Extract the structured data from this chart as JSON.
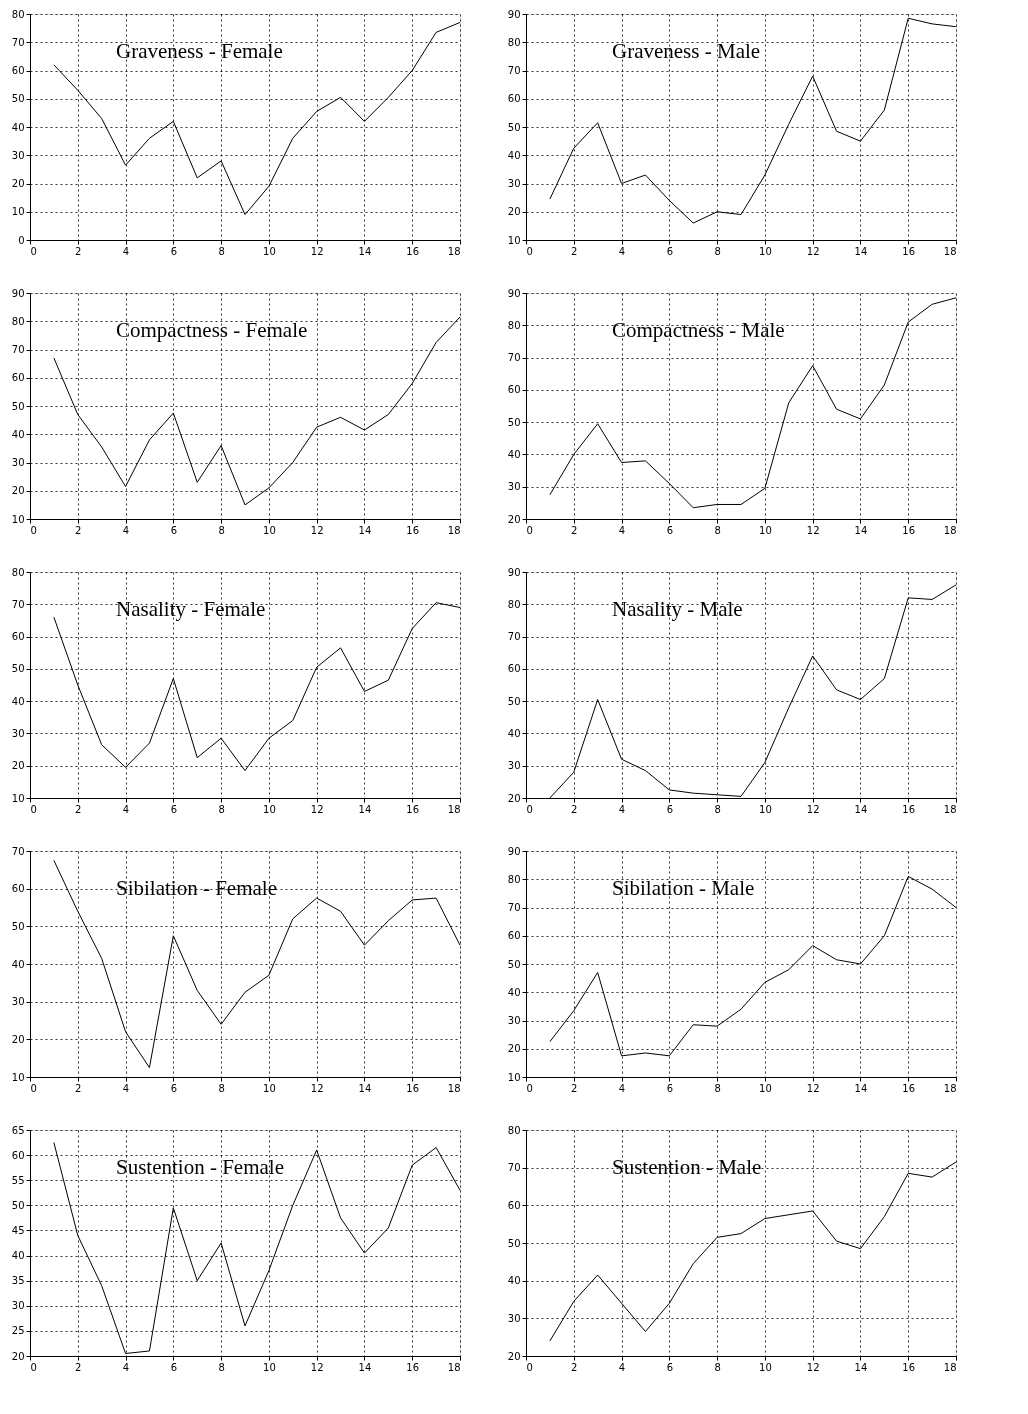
{
  "chart_data": [
    {
      "type": "line",
      "title": "Graveness - Female",
      "x": [
        1,
        2,
        3,
        4,
        5,
        6,
        7,
        8,
        9,
        10,
        11,
        12,
        13,
        14,
        15,
        16,
        17,
        18
      ],
      "xlim": [
        0,
        18
      ],
      "xticks": [
        0,
        2,
        4,
        6,
        8,
        10,
        12,
        14,
        16,
        18
      ],
      "ylim": [
        0,
        80
      ],
      "yticks": [
        0,
        10,
        20,
        30,
        40,
        50,
        60,
        70,
        80
      ],
      "grid": true,
      "marker": "none",
      "line_style": "solid",
      "series": [
        {
          "color": "#000000",
          "values": [
            62,
            53,
            43,
            26.5,
            36,
            42,
            22,
            28,
            9,
            19,
            36,
            45.5,
            50.5,
            42,
            50.5,
            60,
            73.5,
            77
          ]
        }
      ]
    },
    {
      "type": "line",
      "title": "Graveness - Male",
      "x": [
        1,
        2,
        3,
        4,
        5,
        6,
        7,
        8,
        9,
        10,
        11,
        12,
        13,
        14,
        15,
        16,
        17,
        18
      ],
      "xlim": [
        0,
        18
      ],
      "xticks": [
        0,
        2,
        4,
        6,
        8,
        10,
        12,
        14,
        16,
        18
      ],
      "ylim": [
        10,
        90
      ],
      "yticks": [
        10,
        20,
        30,
        40,
        50,
        60,
        70,
        80,
        90
      ],
      "grid": true,
      "marker": "none",
      "line_style": "solid",
      "series": [
        {
          "color": "#000000",
          "values": [
            24.5,
            42.5,
            51.5,
            30,
            33,
            24,
            16,
            20,
            19,
            33,
            51,
            68,
            48.5,
            45,
            56,
            88.5,
            86.5,
            85.5
          ]
        }
      ]
    },
    {
      "type": "line",
      "title": "Compactness - Female",
      "x": [
        1,
        2,
        3,
        4,
        5,
        6,
        7,
        8,
        9,
        10,
        11,
        12,
        13,
        14,
        15,
        16,
        17,
        18
      ],
      "xlim": [
        0,
        18
      ],
      "xticks": [
        0,
        2,
        4,
        6,
        8,
        10,
        12,
        14,
        16,
        18
      ],
      "ylim": [
        10,
        90
      ],
      "yticks": [
        10,
        20,
        30,
        40,
        50,
        60,
        70,
        80,
        90
      ],
      "grid": true,
      "marker": "none",
      "line_style": "solid",
      "series": [
        {
          "color": "#000000",
          "values": [
            67,
            47,
            35.5,
            21.5,
            38,
            47.5,
            23,
            36,
            15,
            21,
            30,
            42.5,
            46,
            41.5,
            47,
            58,
            72.5,
            81.5
          ]
        }
      ]
    },
    {
      "type": "line",
      "title": "Compactness - Male",
      "x": [
        1,
        2,
        3,
        4,
        5,
        6,
        7,
        8,
        9,
        10,
        11,
        12,
        13,
        14,
        15,
        16,
        17,
        18
      ],
      "xlim": [
        0,
        18
      ],
      "xticks": [
        0,
        2,
        4,
        6,
        8,
        10,
        12,
        14,
        16,
        18
      ],
      "ylim": [
        20,
        90
      ],
      "yticks": [
        20,
        30,
        40,
        50,
        60,
        70,
        80,
        90
      ],
      "grid": true,
      "marker": "none",
      "line_style": "solid",
      "series": [
        {
          "color": "#000000",
          "values": [
            27.5,
            40,
            49.5,
            37.5,
            38,
            31,
            23.5,
            24.5,
            24.5,
            29.5,
            56,
            67.5,
            54,
            51,
            61.5,
            81,
            86.5,
            88.5
          ]
        }
      ]
    },
    {
      "type": "line",
      "title": "Nasality - Female",
      "x": [
        1,
        2,
        3,
        4,
        5,
        6,
        7,
        8,
        9,
        10,
        11,
        12,
        13,
        14,
        15,
        16,
        17,
        18
      ],
      "xlim": [
        0,
        18
      ],
      "xticks": [
        0,
        2,
        4,
        6,
        8,
        10,
        12,
        14,
        16,
        18
      ],
      "ylim": [
        10,
        80
      ],
      "yticks": [
        10,
        20,
        30,
        40,
        50,
        60,
        70,
        80
      ],
      "grid": true,
      "marker": "none",
      "line_style": "solid",
      "series": [
        {
          "color": "#000000",
          "values": [
            66,
            45,
            26.5,
            19.5,
            27,
            47,
            22.5,
            28.5,
            18.5,
            28.5,
            34,
            50.5,
            56.5,
            43,
            46.5,
            62.5,
            70.5,
            69
          ]
        }
      ]
    },
    {
      "type": "line",
      "title": "Nasality - Male",
      "x": [
        1,
        2,
        3,
        4,
        5,
        6,
        7,
        8,
        9,
        10,
        11,
        12,
        13,
        14,
        15,
        16,
        17,
        18
      ],
      "xlim": [
        0,
        18
      ],
      "xticks": [
        0,
        2,
        4,
        6,
        8,
        10,
        12,
        14,
        16,
        18
      ],
      "ylim": [
        20,
        90
      ],
      "yticks": [
        20,
        30,
        40,
        50,
        60,
        70,
        80,
        90
      ],
      "grid": true,
      "marker": "none",
      "line_style": "solid",
      "series": [
        {
          "color": "#000000",
          "values": [
            20,
            28,
            50.5,
            32,
            28.5,
            22.5,
            21.5,
            21,
            20.5,
            31,
            48,
            64,
            53.5,
            50.5,
            57,
            82,
            81.5,
            86
          ]
        }
      ]
    },
    {
      "type": "line",
      "title": "Sibilation - Female",
      "x": [
        1,
        2,
        3,
        4,
        5,
        6,
        7,
        8,
        9,
        10,
        11,
        12,
        13,
        14,
        15,
        16,
        17,
        18
      ],
      "xlim": [
        0,
        18
      ],
      "xticks": [
        0,
        2,
        4,
        6,
        8,
        10,
        12,
        14,
        16,
        18
      ],
      "ylim": [
        10,
        70
      ],
      "yticks": [
        10,
        20,
        30,
        40,
        50,
        60,
        70
      ],
      "grid": true,
      "marker": "none",
      "line_style": "solid",
      "series": [
        {
          "color": "#000000",
          "values": [
            67.5,
            54,
            41.5,
            22,
            12.5,
            47.5,
            33,
            24,
            32.5,
            37,
            52,
            57.5,
            54,
            45,
            51.5,
            57,
            57.5,
            45
          ]
        }
      ]
    },
    {
      "type": "line",
      "title": "Sibilation - Male",
      "x": [
        1,
        2,
        3,
        4,
        5,
        6,
        7,
        8,
        9,
        10,
        11,
        12,
        13,
        14,
        15,
        16,
        17,
        18
      ],
      "xlim": [
        0,
        18
      ],
      "xticks": [
        0,
        2,
        4,
        6,
        8,
        10,
        12,
        14,
        16,
        18
      ],
      "ylim": [
        10,
        90
      ],
      "yticks": [
        10,
        20,
        30,
        40,
        50,
        60,
        70,
        80,
        90
      ],
      "grid": true,
      "marker": "none",
      "line_style": "solid",
      "series": [
        {
          "color": "#000000",
          "values": [
            22.5,
            33.5,
            47,
            17.5,
            18.5,
            17.5,
            28.5,
            28,
            34,
            43.5,
            48,
            56.5,
            51.5,
            50,
            60,
            81,
            76.5,
            70
          ]
        }
      ]
    },
    {
      "type": "line",
      "title": "Sustention - Female",
      "x": [
        1,
        2,
        3,
        4,
        5,
        6,
        7,
        8,
        9,
        10,
        11,
        12,
        13,
        14,
        15,
        16,
        17,
        18
      ],
      "xlim": [
        0,
        18
      ],
      "xticks": [
        0,
        2,
        4,
        6,
        8,
        10,
        12,
        14,
        16,
        18
      ],
      "ylim": [
        20,
        65
      ],
      "yticks": [
        20,
        25,
        30,
        35,
        40,
        45,
        50,
        55,
        60,
        65
      ],
      "grid": true,
      "marker": "none",
      "line_style": "solid",
      "series": [
        {
          "color": "#000000",
          "values": [
            62.5,
            44,
            34,
            20.5,
            21,
            49.5,
            35,
            42.5,
            26,
            37,
            50,
            61,
            47.5,
            40.5,
            45.5,
            58,
            61.5,
            53
          ]
        }
      ]
    },
    {
      "type": "line",
      "title": "Sustention - Male",
      "x": [
        1,
        2,
        3,
        4,
        5,
        6,
        7,
        8,
        9,
        10,
        11,
        12,
        13,
        14,
        15,
        16,
        17,
        18
      ],
      "xlim": [
        0,
        18
      ],
      "xticks": [
        0,
        2,
        4,
        6,
        8,
        10,
        12,
        14,
        16,
        18
      ],
      "ylim": [
        20,
        80
      ],
      "yticks": [
        20,
        30,
        40,
        50,
        60,
        70,
        80
      ],
      "grid": true,
      "marker": "none",
      "line_style": "solid",
      "series": [
        {
          "color": "#000000",
          "values": [
            24,
            34.5,
            41.5,
            34,
            26.5,
            34,
            44.5,
            51.5,
            52.5,
            56.5,
            57.5,
            58.5,
            50.5,
            48.5,
            57,
            68.5,
            67.5,
            71.5
          ]
        }
      ]
    }
  ]
}
